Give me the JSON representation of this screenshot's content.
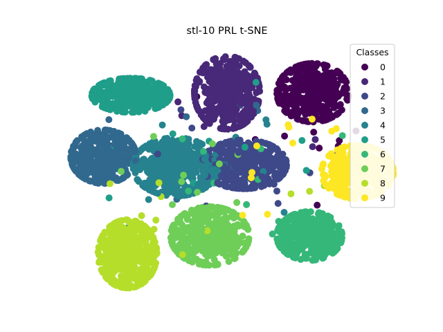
{
  "chart_data": {
    "type": "scatter",
    "title": "stl-10 PRL t-SNE",
    "xlabel": "",
    "ylabel": "",
    "axes_visible": false,
    "grid": false,
    "legend": {
      "title": "Classes",
      "placement": "top-right",
      "entries": [
        "0",
        "1",
        "2",
        "3",
        "4",
        "5",
        "6",
        "7",
        "8",
        "9"
      ]
    },
    "colors": [
      "#440154",
      "#482878",
      "#3e4989",
      "#31688e",
      "#26828e",
      "#1f9e89",
      "#35b779",
      "#6ece58",
      "#b5de2b",
      "#fde725"
    ],
    "xlim": [
      0,
      100
    ],
    "ylim": [
      0,
      100
    ],
    "clusters": [
      {
        "class": "0",
        "center": [
          75,
          80
        ],
        "spread": [
          5.5,
          6.0
        ],
        "count": 420
      },
      {
        "class": "1",
        "center": [
          50,
          80
        ],
        "spread": [
          5.0,
          7.5
        ],
        "count": 420
      },
      {
        "class": "2",
        "center": [
          55,
          52
        ],
        "spread": [
          6.5,
          5.0
        ],
        "count": 420
      },
      {
        "class": "3",
        "center": [
          14,
          55
        ],
        "spread": [
          5.0,
          5.5
        ],
        "count": 420
      },
      {
        "class": "4",
        "center": [
          35,
          51
        ],
        "spread": [
          6.5,
          6.0
        ],
        "count": 420
      },
      {
        "class": "5",
        "center": [
          22,
          79
        ],
        "spread": [
          6.0,
          3.5
        ],
        "count": 400
      },
      {
        "class": "6",
        "center": [
          74,
          24
        ],
        "spread": [
          5.0,
          5.0
        ],
        "count": 400
      },
      {
        "class": "7",
        "center": [
          45,
          24
        ],
        "spread": [
          6.0,
          6.0
        ],
        "count": 420
      },
      {
        "class": "8",
        "center": [
          21,
          17
        ],
        "spread": [
          4.5,
          7.0
        ],
        "count": 420
      },
      {
        "class": "9",
        "center": [
          88,
          49
        ],
        "spread": [
          5.5,
          5.5
        ],
        "count": 400
      }
    ]
  }
}
